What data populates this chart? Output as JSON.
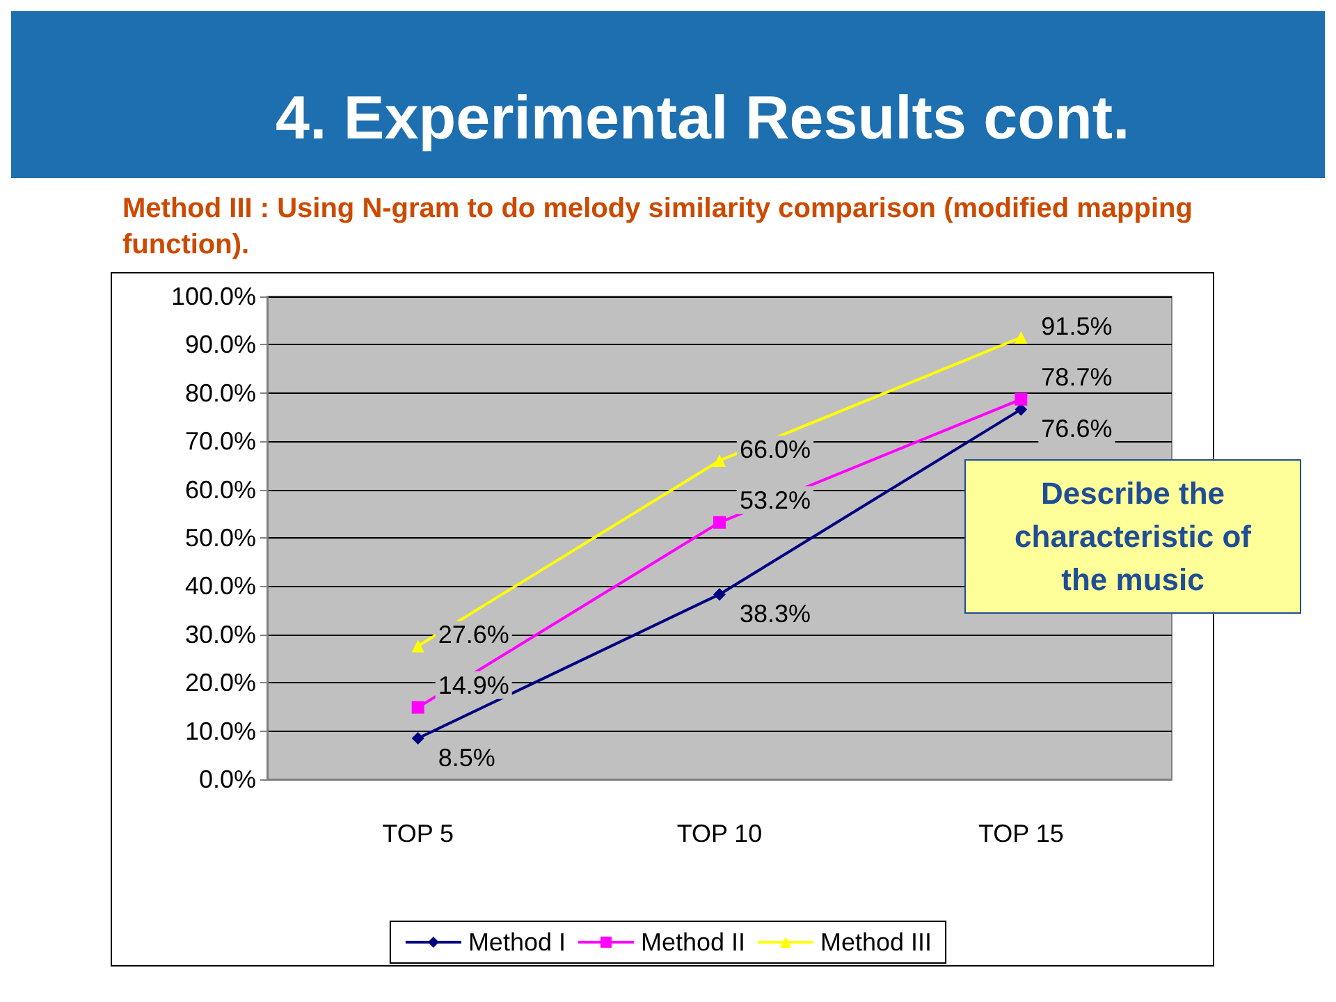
{
  "chart_data": {
    "type": "line",
    "title": "4. Experimental Results cont.",
    "subtitle": "Method III : Using N-gram to do melody similarity comparison (modified mapping function).",
    "categories": [
      "TOP 5",
      "TOP 10",
      "TOP 15"
    ],
    "series": [
      {
        "name": "Method I",
        "color": "#000080",
        "marker": "diamond",
        "values": [
          8.5,
          38.3,
          76.6
        ],
        "value_labels": [
          "8.5%",
          "38.3%",
          "76.6%"
        ]
      },
      {
        "name": "Method II",
        "color": "#ff00ff",
        "marker": "square",
        "values": [
          14.9,
          53.2,
          78.7
        ],
        "value_labels": [
          "14.9%",
          "53.2%",
          "78.7%"
        ]
      },
      {
        "name": "Method III",
        "color": "#ffff00",
        "marker": "triangle",
        "values": [
          27.6,
          66.0,
          91.5
        ],
        "value_labels": [
          "27.6%",
          "66.0%",
          "91.5%"
        ]
      }
    ],
    "ylim": [
      0,
      100
    ],
    "yticks": [
      {
        "value": 0,
        "label": "0.0%"
      },
      {
        "value": 10,
        "label": "10.0%"
      },
      {
        "value": 20,
        "label": "20.0%"
      },
      {
        "value": 30,
        "label": "30.0%"
      },
      {
        "value": 40,
        "label": "40.0%"
      },
      {
        "value": 50,
        "label": "50.0%"
      },
      {
        "value": 60,
        "label": "60.0%"
      },
      {
        "value": 70,
        "label": "70.0%"
      },
      {
        "value": 80,
        "label": "80.0%"
      },
      {
        "value": 90,
        "label": "90.0%"
      },
      {
        "value": 100,
        "label": "100.0%"
      }
    ],
    "grid": "y",
    "legend": "bottom",
    "line_style": "solid",
    "annotations": [
      "Describe the characteristic of the music"
    ]
  }
}
